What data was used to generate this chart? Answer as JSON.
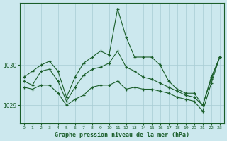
{
  "title": "Graphe pression niveau de la mer (hPa)",
  "background_color": "#cce8ee",
  "line_color": "#1a5e2a",
  "grid_color": "#a8ccd4",
  "x_ticks": [
    0,
    1,
    2,
    3,
    4,
    5,
    6,
    7,
    8,
    9,
    10,
    11,
    12,
    13,
    14,
    15,
    16,
    17,
    18,
    19,
    20,
    21,
    22,
    23
  ],
  "y_ticks": [
    1029,
    1030
  ],
  "ylim": [
    1028.55,
    1031.55
  ],
  "xlim": [
    -0.5,
    23.5
  ],
  "series_max": [
    1029.7,
    1029.85,
    1030.0,
    1030.1,
    1029.85,
    1029.2,
    1029.7,
    1030.05,
    1030.2,
    1030.35,
    1030.25,
    1031.4,
    1030.7,
    1030.2,
    1030.2,
    1030.2,
    1030.0,
    1029.6,
    1029.4,
    1029.3,
    1029.3,
    1029.0,
    1029.7,
    1030.2
  ],
  "series_mid": [
    1029.6,
    1029.5,
    1029.85,
    1029.9,
    1029.6,
    1029.1,
    1029.45,
    1029.75,
    1029.9,
    1029.95,
    1030.05,
    1030.35,
    1029.95,
    1029.85,
    1029.7,
    1029.65,
    1029.55,
    1029.45,
    1029.35,
    1029.25,
    1029.2,
    1029.0,
    1029.65,
    1030.2
  ],
  "series_min": [
    1029.45,
    1029.4,
    1029.5,
    1029.5,
    1029.3,
    1029.0,
    1029.15,
    1029.25,
    1029.45,
    1029.5,
    1029.5,
    1029.6,
    1029.4,
    1029.45,
    1029.4,
    1029.4,
    1029.35,
    1029.3,
    1029.2,
    1029.15,
    1029.1,
    1028.85,
    1029.55,
    1030.2
  ]
}
